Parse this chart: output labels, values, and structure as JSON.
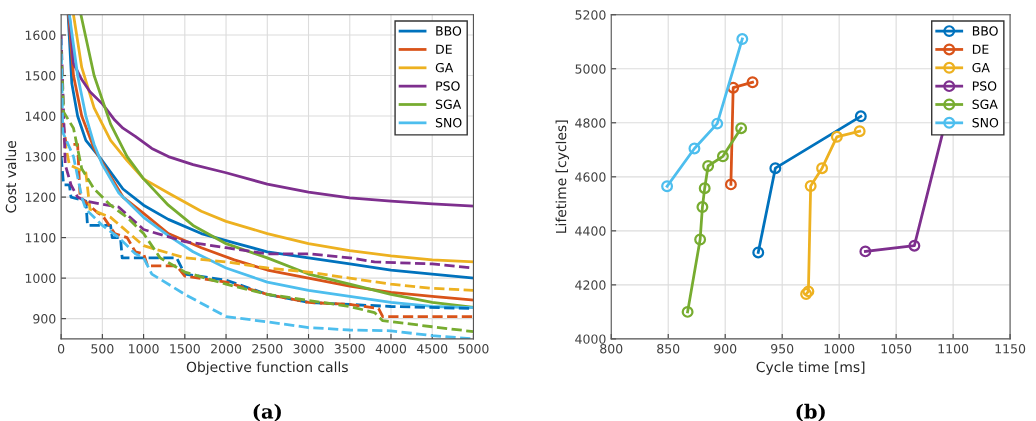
{
  "chart_data": [
    {
      "type": "line",
      "xlabel": "Objective function calls",
      "ylabel": "Cost value",
      "xlim": [
        0,
        5000
      ],
      "ylim": [
        850,
        1650
      ],
      "xticks": [
        0,
        500,
        1000,
        1500,
        2000,
        2500,
        3000,
        3500,
        4000,
        4500,
        5000
      ],
      "yticks": [
        900,
        1000,
        1100,
        1200,
        1300,
        1400,
        1500,
        1600
      ],
      "grid": true,
      "legend": "top right",
      "annotations": [
        "(a)"
      ],
      "series": [
        {
          "name": "BBO",
          "color": "#0072bd",
          "x": [
            85,
            130,
            200,
            300,
            480,
            750,
            1000,
            1300,
            1700,
            2100,
            2500,
            3000,
            3500,
            4000,
            4500,
            5000
          ],
          "values": [
            1650,
            1480,
            1400,
            1340,
            1295,
            1220,
            1180,
            1145,
            1110,
            1087,
            1065,
            1050,
            1035,
            1020,
            1010,
            1000
          ]
        },
        {
          "name": "DE",
          "color": "#d95319",
          "x": [
            90,
            150,
            250,
            400,
            500,
            750,
            1000,
            1300,
            1700,
            2100,
            2500,
            3000,
            3500,
            4000,
            4500,
            5000
          ],
          "values": [
            1650,
            1500,
            1400,
            1320,
            1285,
            1200,
            1160,
            1110,
            1075,
            1045,
            1020,
            1000,
            980,
            965,
            955,
            946
          ]
        },
        {
          "name": "GA",
          "color": "#edb120",
          "x": [
            150,
            250,
            400,
            600,
            800,
            1000,
            1300,
            1700,
            2000,
            2500,
            3000,
            3500,
            4000,
            4500,
            5000
          ],
          "values": [
            1650,
            1520,
            1420,
            1340,
            1290,
            1245,
            1210,
            1165,
            1140,
            1110,
            1085,
            1068,
            1055,
            1045,
            1040
          ]
        },
        {
          "name": "PSO",
          "color": "#7e2f8e",
          "x": [
            100,
            150,
            250,
            350,
            500,
            650,
            750,
            900,
            1100,
            1300,
            1600,
            2000,
            2500,
            3000,
            3500,
            4000,
            4500,
            5000
          ],
          "values": [
            1650,
            1530,
            1490,
            1460,
            1430,
            1390,
            1370,
            1350,
            1320,
            1300,
            1280,
            1260,
            1232,
            1212,
            1198,
            1190,
            1183,
            1178
          ]
        },
        {
          "name": "SGA",
          "color": "#77ac30",
          "x": [
            240,
            400,
            600,
            800,
            1000,
            1300,
            1600,
            2000,
            2500,
            3000,
            3500,
            4000,
            4500,
            5000
          ],
          "values": [
            1650,
            1500,
            1380,
            1300,
            1245,
            1180,
            1130,
            1085,
            1050,
            1010,
            985,
            960,
            940,
            928
          ]
        },
        {
          "name": "SNO",
          "color": "#4dbeee",
          "x": [
            100,
            200,
            300,
            400,
            500,
            700,
            1000,
            1300,
            1600,
            2000,
            2500,
            3000,
            3500,
            4000,
            4500,
            5000
          ],
          "values": [
            1650,
            1500,
            1400,
            1330,
            1280,
            1210,
            1150,
            1105,
            1065,
            1025,
            990,
            970,
            955,
            940,
            930,
            927
          ]
        },
        {
          "color": "#0072bd",
          "line_style": "dashed",
          "x": [
            0,
            30,
            100,
            120,
            300,
            320,
            600,
            620,
            720,
            740,
            1400,
            1500,
            2000,
            2500,
            3000,
            3500,
            4000,
            5000
          ],
          "values": [
            1300,
            1230,
            1230,
            1200,
            1190,
            1130,
            1130,
            1100,
            1100,
            1050,
            1050,
            1010,
            995,
            960,
            940,
            935,
            930,
            925
          ]
        },
        {
          "color": "#d95319",
          "line_style": "dashed",
          "x": [
            0,
            60,
            200,
            230,
            450,
            500,
            650,
            800,
            900,
            1000,
            1050,
            1400,
            1500,
            2000,
            2500,
            3000,
            3500,
            3850,
            3900,
            5000
          ],
          "values": [
            1420,
            1330,
            1330,
            1200,
            1160,
            1155,
            1110,
            1100,
            1065,
            1060,
            1030,
            1030,
            1005,
            990,
            960,
            940,
            935,
            925,
            905,
            905
          ]
        },
        {
          "color": "#edb120",
          "line_style": "dashed",
          "x": [
            0,
            100,
            300,
            350,
            600,
            800,
            1000,
            1500,
            2000,
            2500,
            3000,
            3500,
            4000,
            4500,
            5000
          ],
          "values": [
            1380,
            1280,
            1260,
            1170,
            1150,
            1115,
            1080,
            1050,
            1040,
            1025,
            1015,
            1000,
            985,
            975,
            970
          ]
        },
        {
          "color": "#7e2f8e",
          "line_style": "dashed",
          "x": [
            0,
            50,
            120,
            200,
            300,
            700,
            1000,
            1500,
            2000,
            2500,
            3000,
            3500,
            3800,
            4500,
            5000
          ],
          "values": [
            1600,
            1280,
            1230,
            1200,
            1190,
            1175,
            1120,
            1090,
            1075,
            1060,
            1060,
            1050,
            1040,
            1035,
            1025
          ]
        },
        {
          "color": "#77ac30",
          "line_style": "dashed",
          "x": [
            0,
            30,
            150,
            250,
            400,
            600,
            800,
            1000,
            1200,
            1500,
            2000,
            2500,
            3000,
            3500,
            3800,
            3900,
            4500,
            5000
          ],
          "values": [
            1560,
            1410,
            1370,
            1270,
            1220,
            1180,
            1150,
            1110,
            1050,
            1015,
            985,
            960,
            945,
            930,
            915,
            895,
            880,
            868
          ]
        },
        {
          "color": "#4dbeee",
          "line_style": "dashed",
          "x": [
            0,
            20,
            150,
            250,
            300,
            500,
            700,
            900,
            1000,
            1100,
            1500,
            2000,
            2500,
            3000,
            3500,
            4000,
            4500,
            5000
          ],
          "values": [
            1590,
            1360,
            1300,
            1200,
            1170,
            1130,
            1100,
            1060,
            1050,
            1010,
            960,
            905,
            892,
            878,
            872,
            870,
            858,
            850
          ]
        }
      ]
    },
    {
      "type": "line",
      "xlabel": "Cycle time [ms]",
      "ylabel": "Lifetime [cycles]",
      "xlim": [
        800,
        1150
      ],
      "ylim": [
        4000,
        5200
      ],
      "xticks": [
        800,
        850,
        900,
        950,
        1000,
        1050,
        1100,
        1150
      ],
      "yticks": [
        4000,
        4200,
        4400,
        4600,
        4800,
        5000,
        5200
      ],
      "grid": true,
      "legend": "top right",
      "marker": "circle",
      "annotations": [
        "(b)"
      ],
      "series": [
        {
          "name": "BBO",
          "color": "#0072bd",
          "x": [
            929,
            944,
            1019
          ],
          "values": [
            4320,
            4632,
            4824
          ]
        },
        {
          "name": "DE",
          "color": "#d95319",
          "x": [
            905,
            907,
            924
          ],
          "values": [
            4572,
            4930,
            4950
          ]
        },
        {
          "name": "GA",
          "color": "#edb120",
          "x": [
            971,
            973,
            975,
            985,
            998,
            1018
          ],
          "values": [
            4166,
            4176,
            4566,
            4632,
            4748,
            4769
          ]
        },
        {
          "name": "PSO",
          "color": "#7e2f8e",
          "x": [
            1023,
            1066,
            1102
          ],
          "values": [
            4324,
            4345,
            4950
          ]
        },
        {
          "name": "SGA",
          "color": "#77ac30",
          "x": [
            867,
            878,
            880,
            882,
            885,
            898,
            914
          ],
          "values": [
            4100,
            4368,
            4488,
            4558,
            4640,
            4676,
            4780
          ]
        },
        {
          "name": "SNO",
          "color": "#4dbeee",
          "x": [
            849,
            873,
            893,
            915
          ],
          "values": [
            4565,
            4705,
            4797,
            5110
          ]
        }
      ]
    }
  ]
}
